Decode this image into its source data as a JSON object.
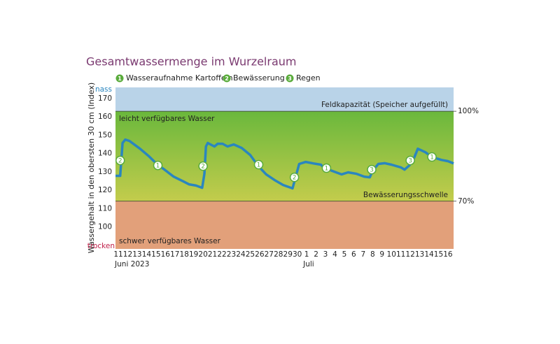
{
  "chart_data": {
    "type": "line",
    "title": "Gesamtwassermenge im Wurzelraum",
    "y_label": "Wassergehalt in den obersten 30 cm (Index)",
    "y_top_label": "nass",
    "y_bottom_label": "trocken",
    "legend": [
      {
        "label": "1",
        "text": "Wasseraufnahme Kartoffeln"
      },
      {
        "label": "2",
        "text": "Bewässerung"
      },
      {
        "label": "3",
        "text": "Regen"
      }
    ],
    "xlim": [
      -0.3,
      35.6
    ],
    "ylim": [
      88,
      176
    ],
    "yticks": [
      100,
      110,
      120,
      130,
      140,
      150,
      160,
      170
    ],
    "xticks": [
      {
        "value": 0,
        "label": "11"
      },
      {
        "value": 1,
        "label": "12"
      },
      {
        "value": 2,
        "label": "13"
      },
      {
        "value": 3,
        "label": "14"
      },
      {
        "value": 4,
        "label": "15"
      },
      {
        "value": 5,
        "label": "16"
      },
      {
        "value": 6,
        "label": "17"
      },
      {
        "value": 7,
        "label": "18"
      },
      {
        "value": 8,
        "label": "19"
      },
      {
        "value": 9,
        "label": "20"
      },
      {
        "value": 10,
        "label": "21"
      },
      {
        "value": 11,
        "label": "22"
      },
      {
        "value": 12,
        "label": "23"
      },
      {
        "value": 13,
        "label": "24"
      },
      {
        "value": 14,
        "label": "25"
      },
      {
        "value": 15,
        "label": "26"
      },
      {
        "value": 16,
        "label": "27"
      },
      {
        "value": 17,
        "label": "28"
      },
      {
        "value": 18,
        "label": "29"
      },
      {
        "value": 19,
        "label": "30"
      },
      {
        "value": 20,
        "label": "1"
      },
      {
        "value": 21,
        "label": "2"
      },
      {
        "value": 22,
        "label": "3"
      },
      {
        "value": 23,
        "label": "4"
      },
      {
        "value": 24,
        "label": "5"
      },
      {
        "value": 25,
        "label": "6"
      },
      {
        "value": 26,
        "label": "7"
      },
      {
        "value": 27,
        "label": "8"
      },
      {
        "value": 28,
        "label": "9"
      },
      {
        "value": 29,
        "label": "10"
      },
      {
        "value": 30,
        "label": "11"
      },
      {
        "value": 31,
        "label": "12"
      },
      {
        "value": 32,
        "label": "13"
      },
      {
        "value": 33,
        "label": "14"
      },
      {
        "value": 34,
        "label": "15"
      },
      {
        "value": 35,
        "label": "16"
      }
    ],
    "x_groups": [
      {
        "value": 0,
        "label": "Juni 2023"
      },
      {
        "value": 20,
        "label": "Juli"
      }
    ],
    "thresholds": [
      {
        "value": 163,
        "label": "Feldkapazität (Speicher aufgefüllt)",
        "percent": "100%"
      },
      {
        "value": 114,
        "label": "Bewässerungsschwelle",
        "percent": "70%"
      }
    ],
    "band_labels": [
      "leicht verfügbares Wasser",
      "schwer verfügbares Wasser"
    ],
    "band_colors": [
      "#b9d3e8",
      "#6ab83c",
      "#c3cc4c",
      "#e2a07a"
    ],
    "series": [
      {
        "color": "#2a86bf",
        "x": [
          -0.3,
          0.2,
          0.45,
          0.74,
          1.19,
          2.3,
          3.27,
          4.16,
          4.9,
          5.87,
          6.9,
          7.5,
          8.25,
          8.9,
          9.14,
          9.3,
          9.5,
          10.2,
          10.55,
          11.07,
          11.6,
          12.26,
          13.1,
          14,
          14.86,
          15.7,
          16.6,
          17.5,
          18.5,
          18.8,
          19.2,
          19.9,
          20.7,
          21.5,
          21.8,
          22.7,
          23.7,
          24.4,
          25.3,
          26.1,
          26.7,
          27,
          27.6,
          28.3,
          29,
          30,
          30.4,
          30.9,
          31.3,
          31.8,
          32.6,
          33.3,
          34.3,
          35,
          35.6
        ],
        "values": [
          127.8,
          127.8,
          145.7,
          147.6,
          146.8,
          142.6,
          138.4,
          133.9,
          131.2,
          127.4,
          124.8,
          123.2,
          122.5,
          121.3,
          128.9,
          143.8,
          145.7,
          143.8,
          145.3,
          145.3,
          143.8,
          144.9,
          143,
          139.2,
          133.1,
          128.6,
          125.5,
          122.8,
          121,
          126.7,
          134.3,
          135.4,
          134.6,
          133.9,
          132.4,
          130.5,
          128.6,
          129.7,
          128.9,
          127.4,
          127,
          130.5,
          134.3,
          134.7,
          133.9,
          132.4,
          131.2,
          133.5,
          136.2,
          142.6,
          140.7,
          138.1,
          136.5,
          135.8,
          134.6
        ]
      }
    ],
    "markers": [
      {
        "x": 0.2,
        "y": 136.2,
        "label": "2"
      },
      {
        "x": 4.2,
        "y": 133.5,
        "label": "1"
      },
      {
        "x": 9,
        "y": 133.1,
        "label": "2"
      },
      {
        "x": 14.9,
        "y": 133.9,
        "label": "1"
      },
      {
        "x": 18.7,
        "y": 127,
        "label": "2"
      },
      {
        "x": 22.1,
        "y": 132,
        "label": "1"
      },
      {
        "x": 26.9,
        "y": 131.2,
        "label": "3"
      },
      {
        "x": 31,
        "y": 136.2,
        "label": "3"
      },
      {
        "x": 33.3,
        "y": 138.1,
        "label": "1"
      }
    ],
    "marker_color": "#5aac3c"
  }
}
